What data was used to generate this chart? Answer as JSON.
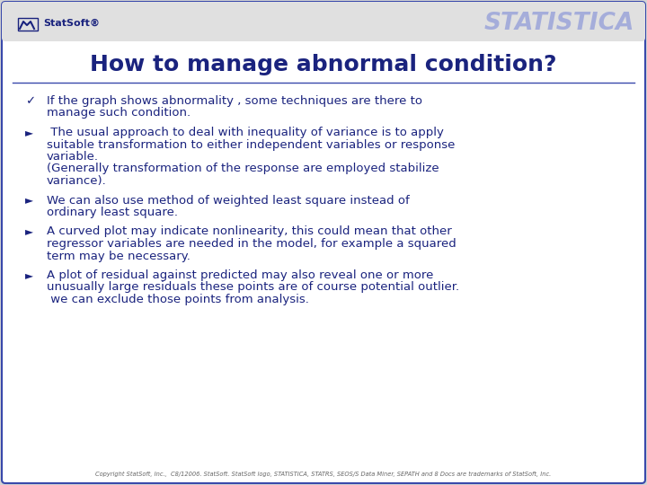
{
  "title": "How to manage abnormal condition?",
  "title_color": "#1a237e",
  "title_fontsize": 18,
  "bg_color": "#d4d4d4",
  "border_color": "#3949ab",
  "text_color": "#1a237e",
  "header_bg": "#e0e0e0",
  "statistica_color": "#9fa8da",
  "font_size": 9.5,
  "footer_text": "Copyright StatSoft, Inc.,  C8/12006. StatSoft. StatSoft logo, STATISTICA, STATRS, SEOS/S Data Miner, SEPATH and 8 Docs are trademarks of StatSoft, Inc.",
  "bullet1_marker": "✓",
  "arrow_marker": "►",
  "lines": [
    {
      "marker": "✓",
      "text": "If the graph shows abnormality , some techniques are there to\nmanage such condition."
    },
    {
      "marker": "►",
      "text": " The usual approach to deal with inequality of variance is to apply\nsuitable transformation to either independent variables or response\nvariable.\n(Generally transformation of the response are employed stabilize\nvariance)."
    },
    {
      "marker": "►",
      "text": "We can also use method of weighted least square instead of\nordinary least square."
    },
    {
      "marker": "►",
      "text": "A curved plot may indicate nonlinearity, this could mean that other\nregressor variables are needed in the model, for example a squared\nterm may be necessary."
    },
    {
      "marker": "►",
      "text": "A plot of residual against predicted may also reveal one or more\nunusually large residuals these points are of course potential outlier.\n we can exclude those points from analysis."
    }
  ]
}
